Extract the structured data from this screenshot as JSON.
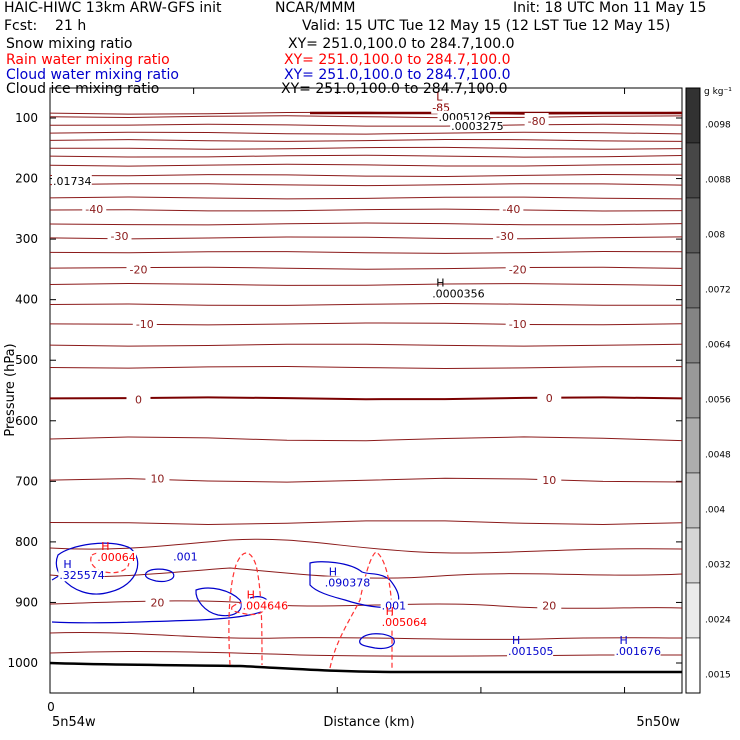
{
  "header": {
    "model": "HAIC-HIWC 13km ARW-GFS init",
    "org": "NCAR/MMM",
    "init": "Init: 18 UTC Mon 11 May 15",
    "fcst": "Fcst:    21 h",
    "valid": "Valid: 15 UTC Tue 12 May 15 (12 LST Tue 12 May 15)",
    "fields": [
      {
        "name": "Snow mixing ratio",
        "xy": "XY= 251.0,100.0 to 284.7,100.0",
        "color": "#000000"
      },
      {
        "name": "Rain water mixing ratio",
        "xy": "XY= 251.0,100.0 to 284.7,100.0",
        "color": "#ff0000"
      },
      {
        "name": "Cloud water mixing ratio",
        "xy": "XY= 251.0,100.0 to 284.7,100.0",
        "color": "#0000cc"
      },
      {
        "name": "Cloud ice mixing ratio",
        "xy": "XY= 251.0,100.0 to 284.7,100.0",
        "color": "#000000"
      }
    ]
  },
  "chart_data": {
    "type": "cross-section contour",
    "ylabel": "Pressure (hPa)",
    "xlabel": "Distance (km)",
    "x_start_label": "5n54w",
    "x_end_label": "5n50w",
    "x_zero_label": "0",
    "y_ticks": [
      100,
      200,
      300,
      400,
      500,
      600,
      700,
      800,
      900,
      1000
    ],
    "ylim": [
      1050,
      65
    ],
    "colorbar": {
      "unit": "g kg⁻¹",
      "ticks": [
        ".0098",
        ".0088",
        ".008",
        ".0072",
        ".0064",
        ".0056",
        ".0048",
        ".004",
        ".0032",
        ".0024",
        ".0015"
      ]
    },
    "temperature_contour_labels": [
      {
        "text": "-80",
        "p": 105,
        "x": 0.77
      },
      {
        "text": "-40",
        "p": 250,
        "x": 0.07
      },
      {
        "text": "-40",
        "p": 250,
        "x": 0.73
      },
      {
        "text": "-30",
        "p": 295,
        "x": 0.11
      },
      {
        "text": "-30",
        "p": 295,
        "x": 0.72
      },
      {
        "text": "-20",
        "p": 350,
        "x": 0.14
      },
      {
        "text": "-20",
        "p": 350,
        "x": 0.74
      },
      {
        "text": "-10",
        "p": 440,
        "x": 0.15
      },
      {
        "text": "-10",
        "p": 440,
        "x": 0.74
      },
      {
        "text": "0",
        "p": 565,
        "x": 0.14
      },
      {
        "text": "0",
        "p": 562,
        "x": 0.79
      },
      {
        "text": "10",
        "p": 695,
        "x": 0.17
      },
      {
        "text": "10",
        "p": 698,
        "x": 0.79
      },
      {
        "text": "20",
        "p": 900,
        "x": 0.17
      },
      {
        "text": "20",
        "p": 905,
        "x": 0.79
      }
    ],
    "extrema_labels": [
      {
        "marker": "L",
        "value": "-85",
        "color": "#8b0000",
        "p": 88,
        "x": 0.6
      },
      {
        "marker": "",
        "value": ".0005126",
        "color": "#000000",
        "p": 103,
        "x": 0.61
      },
      {
        "marker": "",
        "value": ".0003275",
        "color": "#000000",
        "p": 118,
        "x": 0.63
      },
      {
        "marker": "",
        "value": ".01734",
        "color": "#000000",
        "p": 209,
        "x": 0.0
      },
      {
        "marker": "H",
        "value": ".0000356",
        "color": "#000000",
        "p": 395,
        "x": 0.6
      },
      {
        "marker": "H",
        "value": ".00064",
        "color": "#ff0000",
        "p": 830,
        "x": 0.07
      },
      {
        "marker": "",
        "value": ".001",
        "color": "#0000cc",
        "p": 829,
        "x": 0.19
      },
      {
        "marker": "H",
        "value": ".325574",
        "color": "#0000cc",
        "p": 860,
        "x": 0.01
      },
      {
        "marker": "H",
        "value": ".004646",
        "color": "#ff0000",
        "p": 910,
        "x": 0.3
      },
      {
        "marker": "H",
        "value": ".090378",
        "color": "#0000cc",
        "p": 872,
        "x": 0.43
      },
      {
        "marker": "",
        "value": ".001",
        "color": "#0000cc",
        "p": 910,
        "x": 0.52
      },
      {
        "marker": "H",
        "value": ".005064",
        "color": "#ff0000",
        "p": 937,
        "x": 0.52
      },
      {
        "marker": "H",
        "value": ".001505",
        "color": "#0000cc",
        "p": 985,
        "x": 0.72
      },
      {
        "marker": "H",
        "value": ".001676",
        "color": "#0000cc",
        "p": 985,
        "x": 0.89
      }
    ]
  }
}
